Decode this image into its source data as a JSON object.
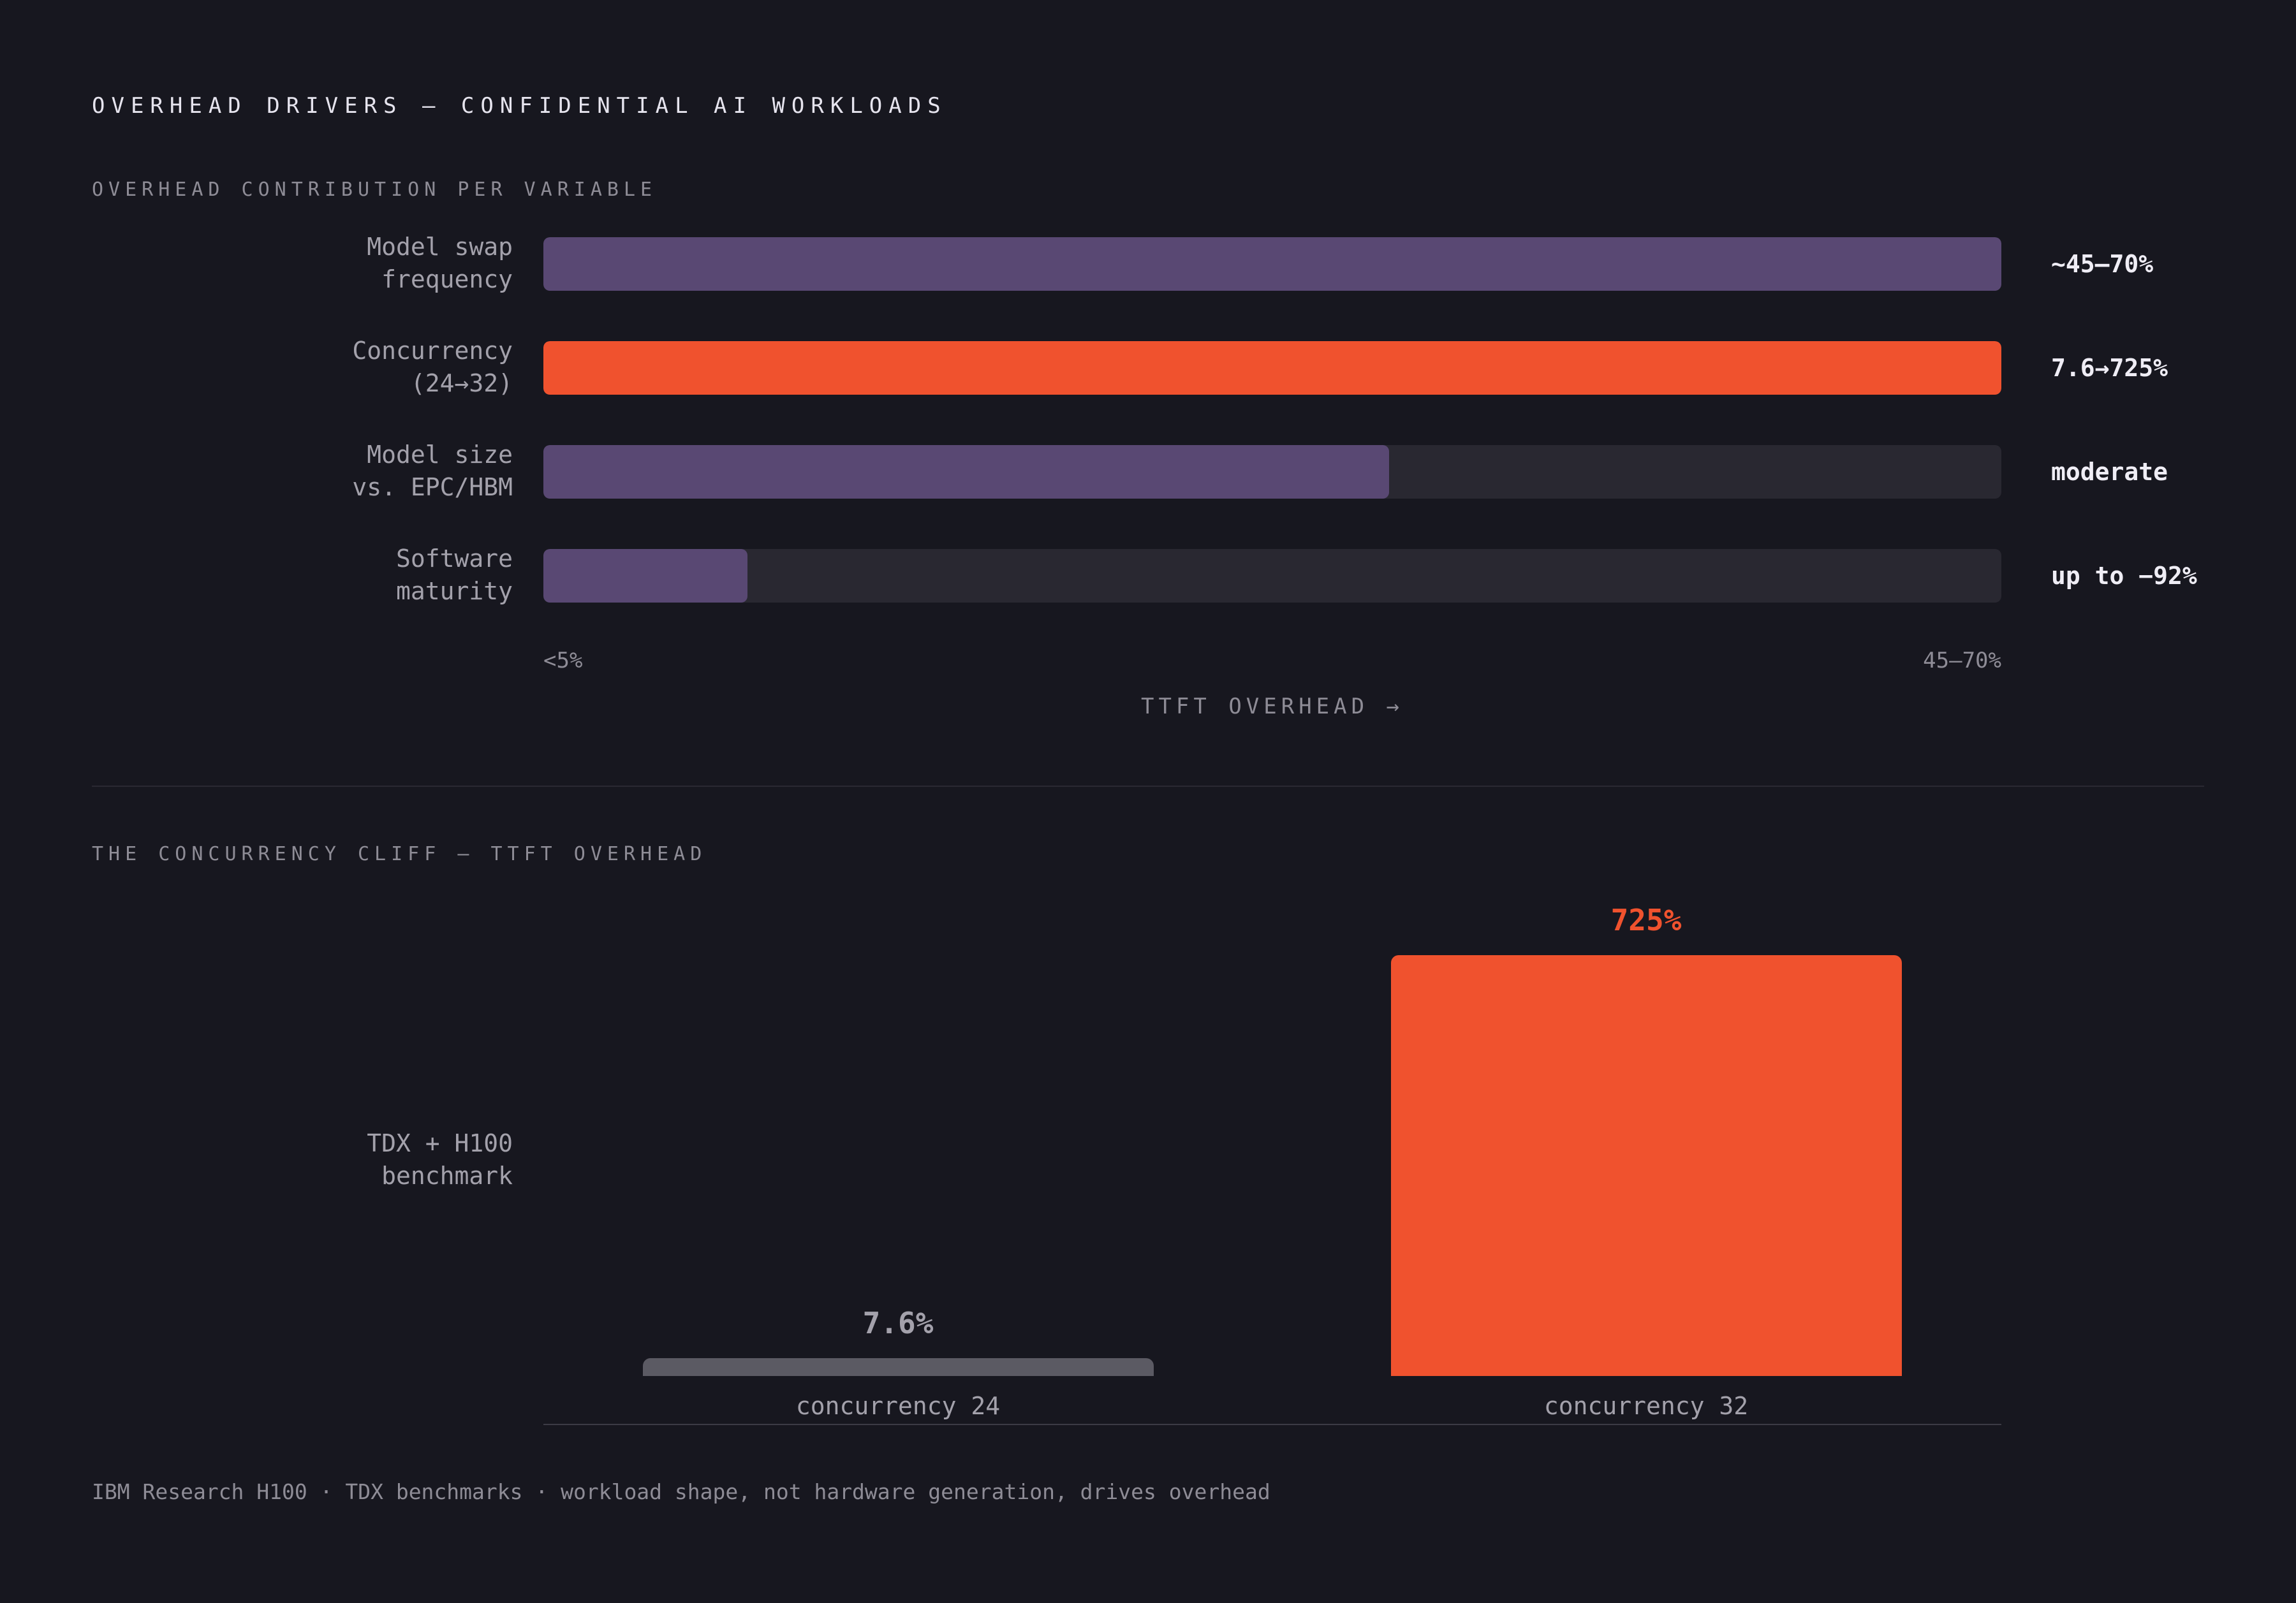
{
  "page_title": "OVERHEAD DRIVERS — CONFIDENTIAL AI WORKLOADS",
  "footnote": "IBM Research H100 · TDX benchmarks · workload shape, not hardware generation, drives overhead",
  "colors": {
    "background": "#17171f",
    "purple": "#594873",
    "orange": "#f0522e",
    "gray_bar": "#5b5a63",
    "track": "#292831"
  },
  "chart_data": [
    {
      "type": "bar",
      "orientation": "horizontal",
      "title": "OVERHEAD CONTRIBUTION PER VARIABLE",
      "xlabel": "TTFT OVERHEAD →",
      "x_tick_labels": [
        "<5%",
        "45–70%"
      ],
      "categories": [
        [
          "Model swap",
          "frequency"
        ],
        [
          "Concurrency",
          "(24→32)"
        ],
        [
          "Model size",
          "vs. EPC/HBM"
        ],
        [
          "Software",
          "maturity"
        ]
      ],
      "values": [
        1.0,
        1.0,
        0.58,
        0.14
      ],
      "value_labels": [
        "~45–70%",
        "7.6→725%",
        "moderate",
        "up to −92%"
      ],
      "bar_colors": [
        "#594873",
        "#f0522e",
        "#594873",
        "#594873"
      ]
    },
    {
      "type": "bar",
      "orientation": "vertical",
      "title": "THE CONCURRENCY CLIFF — TTFT OVERHEAD",
      "group_label": [
        "TDX + H100",
        "benchmark"
      ],
      "categories": [
        "concurrency 24",
        "concurrency 32"
      ],
      "values": [
        7.6,
        725
      ],
      "value_labels": [
        "7.6%",
        "725%"
      ],
      "bar_colors": [
        "#5b5a63",
        "#f0522e"
      ],
      "label_colors": [
        "#a3a1ab",
        "#f0522e"
      ]
    }
  ]
}
